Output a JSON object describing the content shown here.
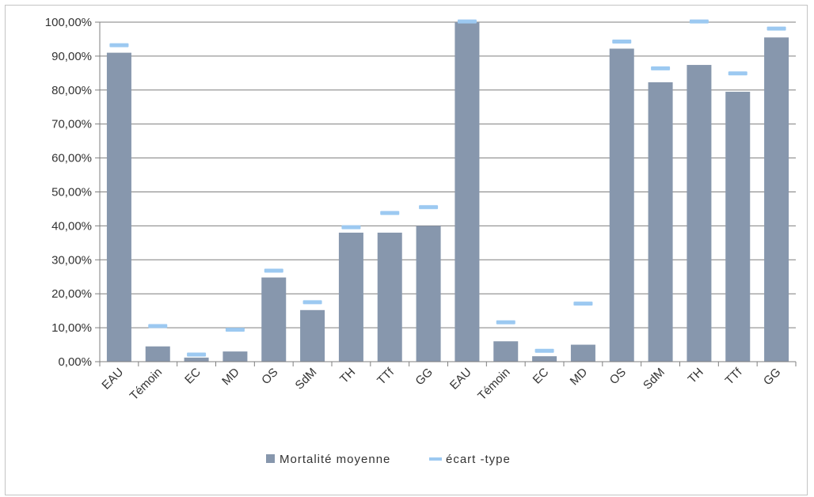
{
  "chart_data": {
    "type": "bar",
    "categories": [
      "EAU",
      "Témoin",
      "EC",
      "MD",
      "OS",
      "SdM",
      "TH",
      "TTf",
      "GG",
      "EAU",
      "Témoin",
      "EC",
      "MD",
      "OS",
      "SdM",
      "TH",
      "TTf",
      "GG"
    ],
    "series": [
      {
        "name": "Mortalité moyenne",
        "values": [
          91,
          4.5,
          1.2,
          3,
          24.8,
          15.2,
          38,
          38,
          40,
          100,
          6,
          1.6,
          5,
          92.2,
          82.3,
          87.4,
          79.5,
          95.5
        ]
      },
      {
        "name": "écart -type",
        "values": [
          93.2,
          10.5,
          2.1,
          9.4,
          26.8,
          17.5,
          39.6,
          43.8,
          45.5,
          100.2,
          11.6,
          3.2,
          17.1,
          94.3,
          86.4,
          100.2,
          84.9,
          98.1
        ]
      }
    ],
    "ylim": [
      0,
      100
    ],
    "y_ticks": [
      "0,00%",
      "10,00%",
      "20,00%",
      "30,00%",
      "40,00%",
      "50,00%",
      "60,00%",
      "70,00%",
      "80,00%",
      "90,00%",
      "100,00%"
    ],
    "xlabel": "",
    "ylabel": "",
    "title": "",
    "grid": true,
    "legend": "bottom-center",
    "colors": {
      "bar": "#8797ad",
      "error_marker": "#9cc9f1",
      "gridline": "#7f7f7f",
      "axis": "#7f7f7f"
    }
  }
}
